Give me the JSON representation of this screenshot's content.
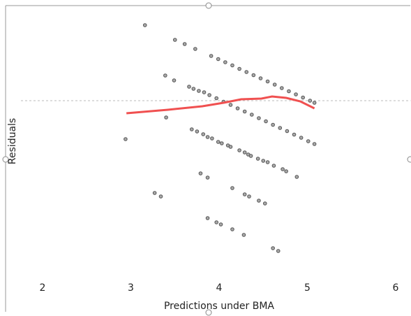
{
  "chart_data": {
    "type": "scatter",
    "xlabel": "Predictions under BMA",
    "ylabel": "Residuals",
    "xlim": [
      1.6,
      6.17
    ],
    "ylim": [
      -5.1,
      2.7
    ],
    "xticks": [
      2,
      3,
      4,
      5,
      6
    ],
    "reference_line": 0,
    "series": [
      {
        "color": "#555555",
        "x": [
          3.16,
          3.5,
          3.61,
          3.73,
          3.39,
          3.49,
          3.66,
          3.71,
          3.77,
          3.83,
          3.4,
          2.94,
          3.69,
          3.75,
          3.82,
          3.87,
          3.92,
          3.99,
          4.03,
          4.1,
          4.13,
          4.23,
          4.29,
          4.33,
          4.36,
          4.44,
          4.5,
          4.55,
          4.62,
          4.72,
          4.76,
          4.88,
          3.79,
          3.87,
          4.15,
          4.29,
          4.34,
          4.45,
          4.52,
          3.27,
          3.34,
          3.87,
          3.97,
          4.02,
          4.15,
          4.28,
          4.61,
          4.67,
          3.91,
          3.99,
          4.07,
          4.15,
          4.23,
          4.31,
          4.39,
          4.47,
          4.55,
          4.63,
          4.71,
          4.79,
          4.87,
          4.95,
          5.03,
          5.08,
          3.89,
          3.97,
          4.05,
          4.13,
          4.21,
          4.29,
          4.37,
          4.45,
          4.53,
          4.61,
          4.69,
          4.77,
          4.85,
          4.93,
          5.01,
          5.08
        ],
        "values": [
          2.16,
          1.74,
          1.62,
          1.48,
          0.72,
          0.58,
          0.4,
          0.34,
          0.28,
          0.24,
          -0.48,
          -1.1,
          -0.82,
          -0.88,
          -0.96,
          -1.04,
          -1.08,
          -1.18,
          -1.22,
          -1.28,
          -1.32,
          -1.42,
          -1.48,
          -1.54,
          -1.58,
          -1.66,
          -1.72,
          -1.76,
          -1.86,
          -1.96,
          -2.02,
          -2.18,
          -2.08,
          -2.2,
          -2.5,
          -2.68,
          -2.74,
          -2.86,
          -2.94,
          -2.64,
          -2.74,
          -3.36,
          -3.48,
          -3.54,
          -3.68,
          -3.84,
          -4.22,
          -4.3,
          1.28,
          1.19,
          1.1,
          1.01,
          0.91,
          0.82,
          0.73,
          0.64,
          0.55,
          0.46,
          0.36,
          0.27,
          0.18,
          0.09,
          0.0,
          -0.06,
          0.16,
          0.07,
          -0.03,
          -0.12,
          -0.22,
          -0.31,
          -0.4,
          -0.5,
          -0.59,
          -0.69,
          -0.78,
          -0.87,
          -0.97,
          -1.06,
          -1.16,
          -1.24
        ]
      }
    ],
    "smooth": {
      "color": "#f05050",
      "x": [
        2.95,
        3.42,
        3.81,
        4.05,
        4.25,
        4.48,
        4.6,
        4.76,
        4.92,
        5.08
      ],
      "values": [
        -0.36,
        -0.26,
        -0.16,
        -0.06,
        0.04,
        0.06,
        0.12,
        0.08,
        -0.02,
        -0.22
      ]
    }
  }
}
